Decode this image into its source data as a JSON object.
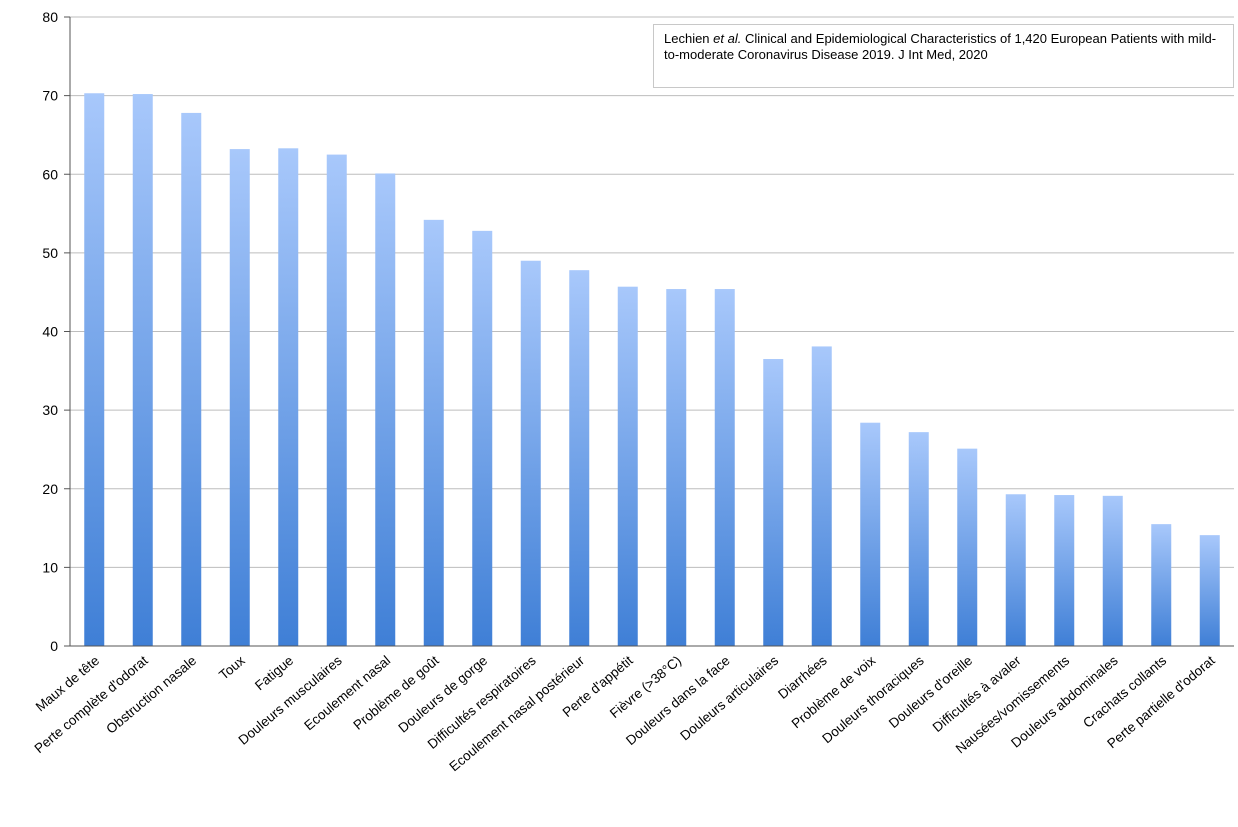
{
  "chart_data": {
    "type": "bar",
    "title": "",
    "xlabel": "",
    "ylabel": "",
    "ylim": [
      0,
      80
    ],
    "yticks": [
      0,
      10,
      20,
      30,
      40,
      50,
      60,
      70,
      80
    ],
    "grid": true,
    "categories": [
      "Maux de tête",
      "Perte complète d'odorat",
      "Obstruction nasale",
      "Toux",
      "Fatigue",
      "Douleurs musculaires",
      "Ecoulement nasal",
      "Problème de goût",
      "Douleurs de gorge",
      "Difficultés respiratoires",
      "Ecoulement nasal postérieur",
      "Perte d'appétit",
      "Fièvre (>38°C)",
      "Douleurs dans la face",
      "Douleurs articulaires",
      "Diarrhées",
      "Problème de voix",
      "Douleurs thoraciques",
      "Douleurs d'oreille",
      "Difficultés à avaler",
      "Nausées/vomissements",
      "Douleurs abdominales",
      "Crachats collants",
      "Perte partielle d'odorat"
    ],
    "values": [
      70.3,
      70.2,
      67.8,
      63.2,
      63.3,
      62.5,
      60.1,
      54.2,
      52.8,
      49.0,
      47.8,
      45.7,
      45.4,
      45.4,
      36.5,
      38.1,
      28.4,
      27.2,
      25.1,
      19.3,
      19.2,
      19.1,
      15.5,
      14.1
    ],
    "bar_color_top": "#a8c8fb",
    "bar_color_bottom": "#3f7fd6",
    "annotation": {
      "pre": "Lechien ",
      "em": "et al.",
      "post": " Clinical and Epidemiological Characteristics of 1,420 European Patients with mild-to-moderate Coronavirus Disease 2019. J Int Med, 2020"
    }
  }
}
